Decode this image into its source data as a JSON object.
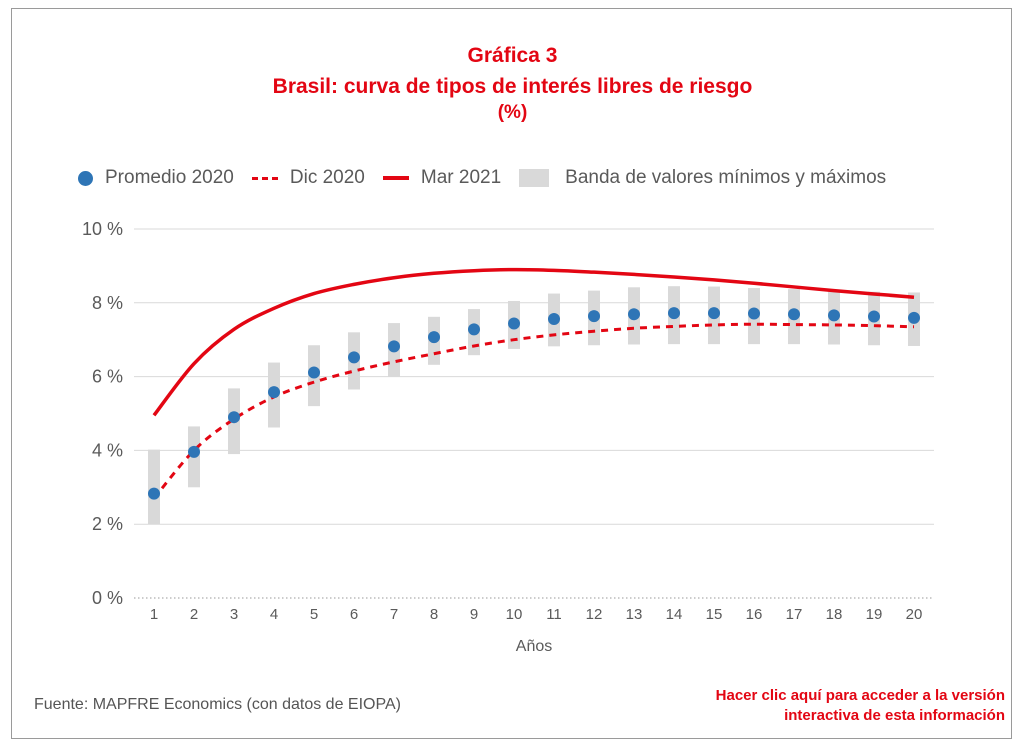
{
  "title": {
    "line1": "Gráfica 3",
    "line2": "Brasil: curva de tipos de interés libres de riesgo",
    "line3": "(%)"
  },
  "legend": {
    "promedio": "Promedio 2020",
    "dic": "Dic 2020",
    "mar": "Mar 2021",
    "banda": "Banda de valores mínimos y máximos"
  },
  "source": "Fuente: MAPFRE Economics (con datos de EIOPA)",
  "cta": {
    "line1": "Hacer clic aquí para acceder a la versión",
    "line2": "interactiva de esta información"
  },
  "colors": {
    "accent": "#e30613",
    "dots": "#2e75b6",
    "band": "#d9d9d9",
    "grid": "#d9d9d9",
    "text": "#5a5a5a"
  },
  "chart_data": {
    "type": "line",
    "xlabel": "Años",
    "ylabel": "",
    "x": [
      1,
      2,
      3,
      4,
      5,
      6,
      7,
      8,
      9,
      10,
      11,
      12,
      13,
      14,
      15,
      16,
      17,
      18,
      19,
      20
    ],
    "ylim": [
      0,
      10
    ],
    "yticks": [
      0,
      2,
      4,
      6,
      8,
      10
    ],
    "ytick_labels": [
      "0 %",
      "2 %",
      "4 %",
      "6 %",
      "8 %",
      "10 %"
    ],
    "grid": true,
    "legend_position": "top",
    "series": [
      {
        "name": "Promedio 2020",
        "style": "dots",
        "values": [
          2.83,
          3.96,
          4.9,
          5.58,
          6.11,
          6.52,
          6.82,
          7.07,
          7.28,
          7.44,
          7.56,
          7.64,
          7.69,
          7.72,
          7.72,
          7.71,
          7.69,
          7.66,
          7.63,
          7.59
        ]
      },
      {
        "name": "Dic 2020",
        "style": "dashed",
        "values": [
          2.7,
          4.0,
          4.85,
          5.45,
          5.85,
          6.15,
          6.4,
          6.62,
          6.83,
          7.0,
          7.13,
          7.23,
          7.31,
          7.36,
          7.4,
          7.42,
          7.41,
          7.4,
          7.38,
          7.35
        ]
      },
      {
        "name": "Mar 2021",
        "style": "solid",
        "values": [
          4.95,
          6.35,
          7.28,
          7.85,
          8.25,
          8.5,
          8.68,
          8.8,
          8.87,
          8.9,
          8.88,
          8.83,
          8.77,
          8.7,
          8.62,
          8.53,
          8.43,
          8.33,
          8.24,
          8.15
        ]
      },
      {
        "name": "Banda de valores mínimos y máximos",
        "style": "band",
        "min": [
          2.0,
          3.0,
          3.9,
          4.62,
          5.2,
          5.65,
          6.0,
          6.32,
          6.58,
          6.75,
          6.82,
          6.85,
          6.87,
          6.88,
          6.88,
          6.88,
          6.88,
          6.87,
          6.85,
          6.83
        ],
        "max": [
          4.02,
          4.65,
          5.68,
          6.38,
          6.85,
          7.2,
          7.45,
          7.62,
          7.83,
          8.05,
          8.25,
          8.33,
          8.42,
          8.45,
          8.44,
          8.4,
          8.37,
          8.33,
          8.3,
          8.28
        ]
      }
    ]
  }
}
